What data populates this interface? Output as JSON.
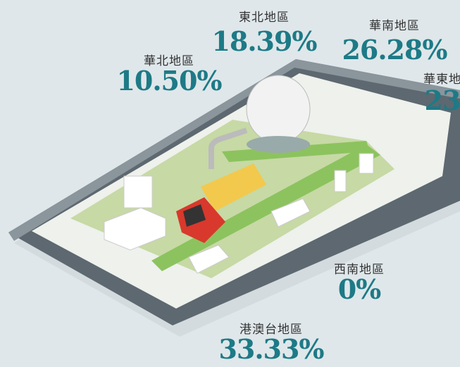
{
  "regions": [
    {
      "name": "東北地區",
      "value": "18.39%"
    },
    {
      "name": "華南地區",
      "value": "26.28%"
    },
    {
      "name": "華北地區",
      "value": "10.50%"
    },
    {
      "name": "華東地",
      "value": "23"
    },
    {
      "name": "西南地區",
      "value": "0%"
    },
    {
      "name": "港澳台地區",
      "value": "33.33%"
    }
  ]
}
